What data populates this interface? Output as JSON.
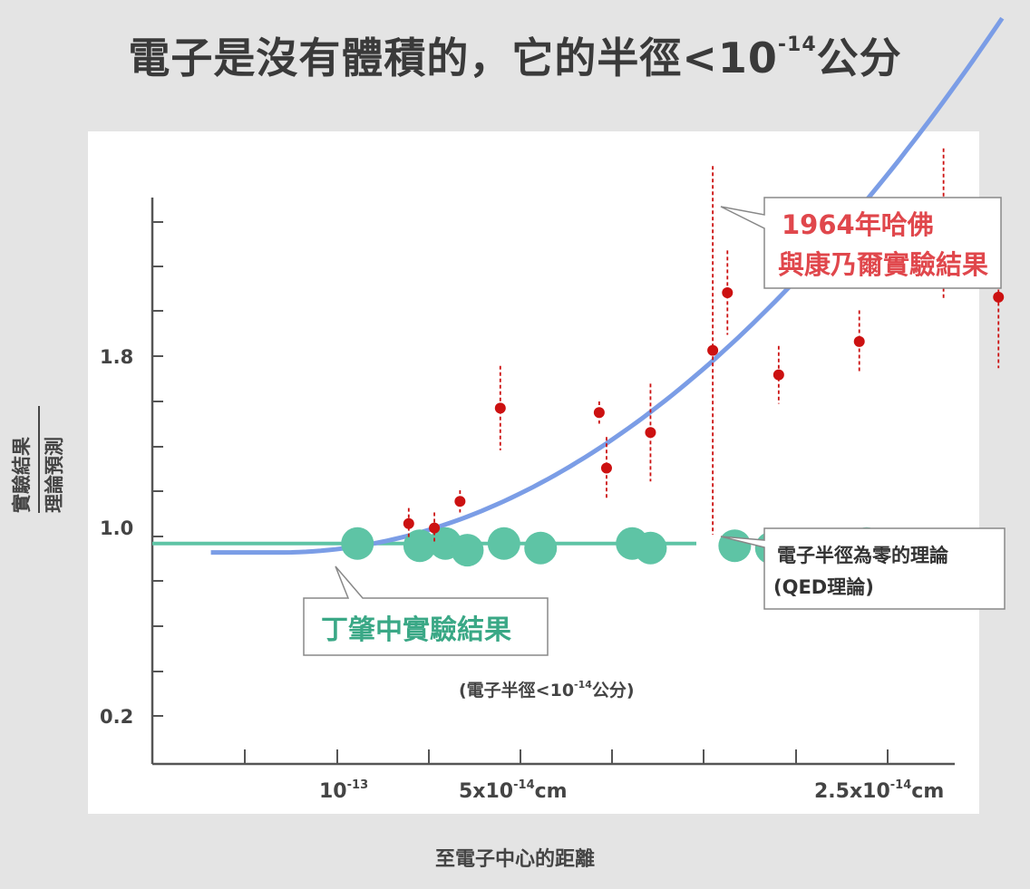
{
  "title": {
    "main": "電子是沒有體積的，它的半徑<10",
    "exponent": "-14",
    "suffix": "公分"
  },
  "colors": {
    "red": "#cc1111",
    "blue": "#7b9de6",
    "green": "#5ec4a5",
    "axis": "#555555",
    "label_red": "#e0474c",
    "label_green": "#3aa886"
  },
  "chart_data": {
    "type": "scatter",
    "title": "",
    "xlabel": "至電子中心的距離",
    "ylabel": {
      "numerator": "實驗結果",
      "denominator": "理論預測"
    },
    "yticks": [
      "1.8",
      "1.0",
      "0.2"
    ],
    "xticks": [
      {
        "base": "10",
        "exp": "-13",
        "unit": ""
      },
      {
        "base": "5x10",
        "exp": "-14",
        "unit": "cm"
      },
      {
        "base": "2.5x10",
        "exp": "-14",
        "unit": "cm"
      }
    ],
    "harvard_cornell_1964": {
      "name": "1964年哈佛與康乃爾實驗結果",
      "points": [
        {
          "x": 10.0,
          "y": 1.05,
          "err": 0.07
        },
        {
          "x": 10.7,
          "y": 1.03,
          "err": 0.07
        },
        {
          "x": 11.4,
          "y": 1.15,
          "err": 0.05
        },
        {
          "x": 12.5,
          "y": 1.57,
          "err": 0.19
        },
        {
          "x": 15.2,
          "y": 1.55,
          "err": 0.05
        },
        {
          "x": 15.4,
          "y": 1.3,
          "err": 0.14
        },
        {
          "x": 16.6,
          "y": 1.46,
          "err": 0.22
        },
        {
          "x": 18.3,
          "y": 1.83,
          "err": 0.83
        },
        {
          "x": 18.7,
          "y": 2.09,
          "err": 0.19
        },
        {
          "x": 20.1,
          "y": 1.72,
          "err": 0.13
        },
        {
          "x": 22.3,
          "y": 1.87,
          "err": 0.14
        },
        {
          "x": 24.6,
          "y": 2.4,
          "err": 0.34
        },
        {
          "x": 26.1,
          "y": 2.07,
          "err": 0.32
        }
      ]
    },
    "ting_zhaozhong": {
      "name": "丁肇中實驗結果",
      "note": "(電子半徑<10",
      "note_exp": "-14",
      "note_suffix": "公分)",
      "points": [
        {
          "x": 8.6,
          "y": 0.96
        },
        {
          "x": 10.3,
          "y": 0.95
        },
        {
          "x": 11.0,
          "y": 0.96
        },
        {
          "x": 11.6,
          "y": 0.93
        },
        {
          "x": 12.6,
          "y": 0.96
        },
        {
          "x": 13.6,
          "y": 0.94
        },
        {
          "x": 16.1,
          "y": 0.96
        },
        {
          "x": 16.6,
          "y": 0.94
        },
        {
          "x": 18.9,
          "y": 0.95
        },
        {
          "x": 19.9,
          "y": 0.94
        },
        {
          "x": 22.5,
          "y": 0.96
        }
      ]
    },
    "qed_line": {
      "name": "電子半徑為零的理論",
      "name2": "(QED理論)",
      "y": 0.96
    },
    "fit_curve": {
      "x0": 4.6,
      "x1": 26.3
    }
  }
}
